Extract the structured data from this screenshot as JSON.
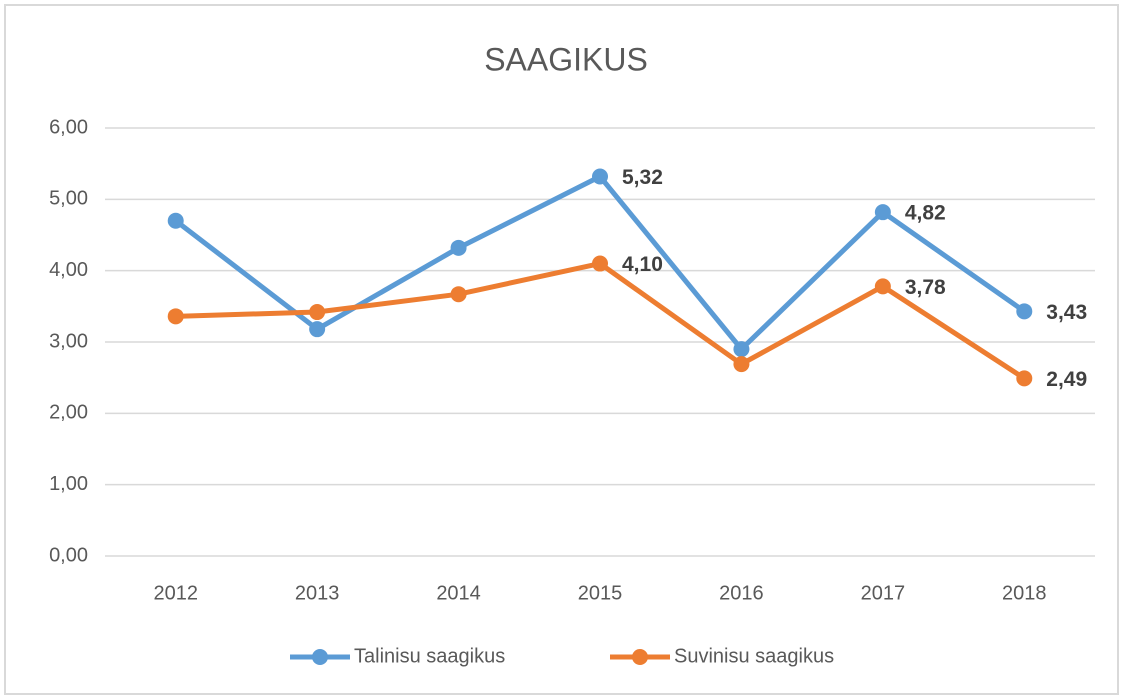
{
  "chart_data": {
    "type": "line",
    "title": "SAAGIKUS",
    "categories": [
      "2012",
      "2013",
      "2014",
      "2015",
      "2016",
      "2017",
      "2018"
    ],
    "series": [
      {
        "name": "Talinisu saagikus",
        "color": "#5b9bd5",
        "values": [
          4.7,
          3.18,
          4.32,
          5.32,
          2.9,
          4.82,
          3.43
        ],
        "value_labels": [
          null,
          null,
          null,
          "5,32",
          null,
          "4,82",
          "3,43"
        ]
      },
      {
        "name": "Suvinisu saagikus",
        "color": "#ed7d31",
        "values": [
          3.36,
          3.42,
          3.67,
          4.1,
          2.69,
          3.78,
          2.49
        ],
        "value_labels": [
          null,
          null,
          null,
          "4,10",
          null,
          "3,78",
          "2,49"
        ]
      }
    ],
    "ylim": [
      0,
      6
    ],
    "yticks": [
      {
        "value": 0,
        "label": "0,00"
      },
      {
        "value": 1,
        "label": "1,00"
      },
      {
        "value": 2,
        "label": "2,00"
      },
      {
        "value": 3,
        "label": "3,00"
      },
      {
        "value": 4,
        "label": "4,00"
      },
      {
        "value": 5,
        "label": "5,00"
      },
      {
        "value": 6,
        "label": "6,00"
      }
    ],
    "grid": true,
    "legend": "bottom"
  }
}
